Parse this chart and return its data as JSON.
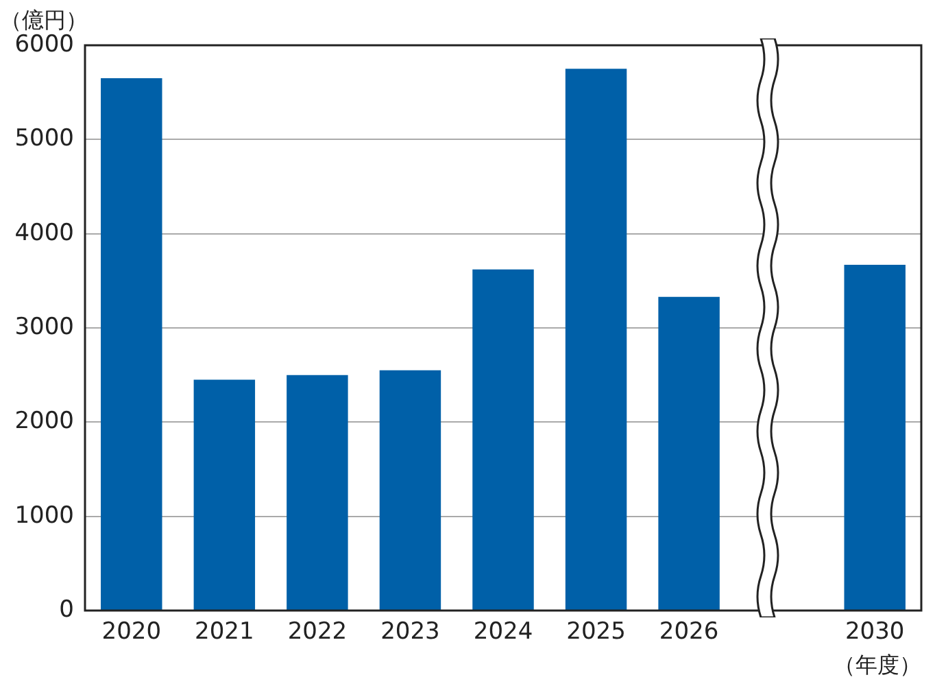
{
  "chart_data": {
    "type": "bar",
    "ylabel": "（億円）",
    "xlabel": "（年度）",
    "categories": [
      "2020",
      "2021",
      "2022",
      "2023",
      "2024",
      "2025",
      "2026",
      null,
      "2030"
    ],
    "values": [
      5650,
      2450,
      2500,
      2550,
      3620,
      5750,
      3330,
      null,
      3670
    ],
    "color": "#0060a8",
    "ylim": [
      0,
      6000
    ],
    "yticks": [
      0,
      1000,
      2000,
      3000,
      4000,
      5000,
      6000
    ],
    "grid": "y",
    "legend": false
  }
}
